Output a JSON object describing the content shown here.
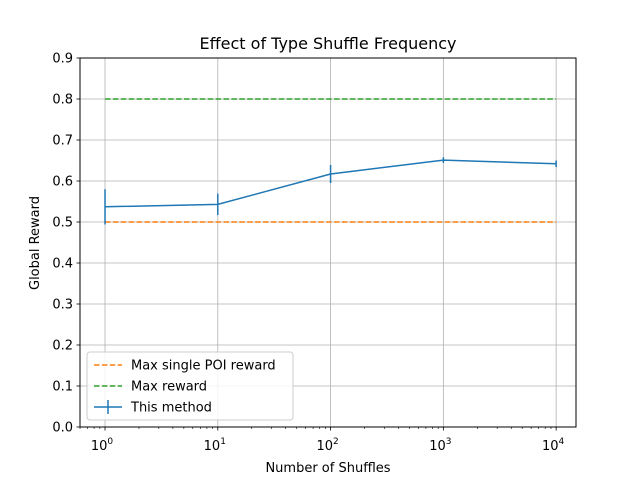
{
  "chart_data": {
    "type": "line",
    "title": "Effect of Type Shuffle Frequency",
    "xlabel": "Number of Shuffles",
    "ylabel": "Global Reward",
    "xscale": "log",
    "xlim": [
      0.6,
      15000
    ],
    "ylim": [
      0,
      0.9
    ],
    "grid": true,
    "legend_position": "lower-left",
    "x_ticks": [
      {
        "value": 1,
        "base": "10",
        "exp": "0"
      },
      {
        "value": 10,
        "base": "10",
        "exp": "1"
      },
      {
        "value": 100,
        "base": "10",
        "exp": "2"
      },
      {
        "value": 1000,
        "base": "10",
        "exp": "3"
      },
      {
        "value": 10000,
        "base": "10",
        "exp": "4"
      }
    ],
    "y_ticks": [
      "0.0",
      "0.1",
      "0.2",
      "0.3",
      "0.4",
      "0.5",
      "0.6",
      "0.7",
      "0.8",
      "0.9"
    ],
    "series": [
      {
        "name": "Max single POI reward",
        "style": "dashed",
        "color": "#ff7f0e",
        "x": [
          1,
          10000
        ],
        "values": [
          0.5,
          0.5
        ]
      },
      {
        "name": "Max reward",
        "style": "dashed",
        "color": "#2ca02c",
        "x": [
          1,
          10000
        ],
        "values": [
          0.8,
          0.8
        ]
      },
      {
        "name": "This method",
        "style": "solid",
        "color": "#1f77b4",
        "x": [
          1,
          10,
          100,
          1000,
          10000
        ],
        "values": [
          0.537,
          0.543,
          0.617,
          0.651,
          0.642
        ],
        "errors": [
          0.043,
          0.026,
          0.022,
          0.007,
          0.008
        ]
      }
    ]
  }
}
